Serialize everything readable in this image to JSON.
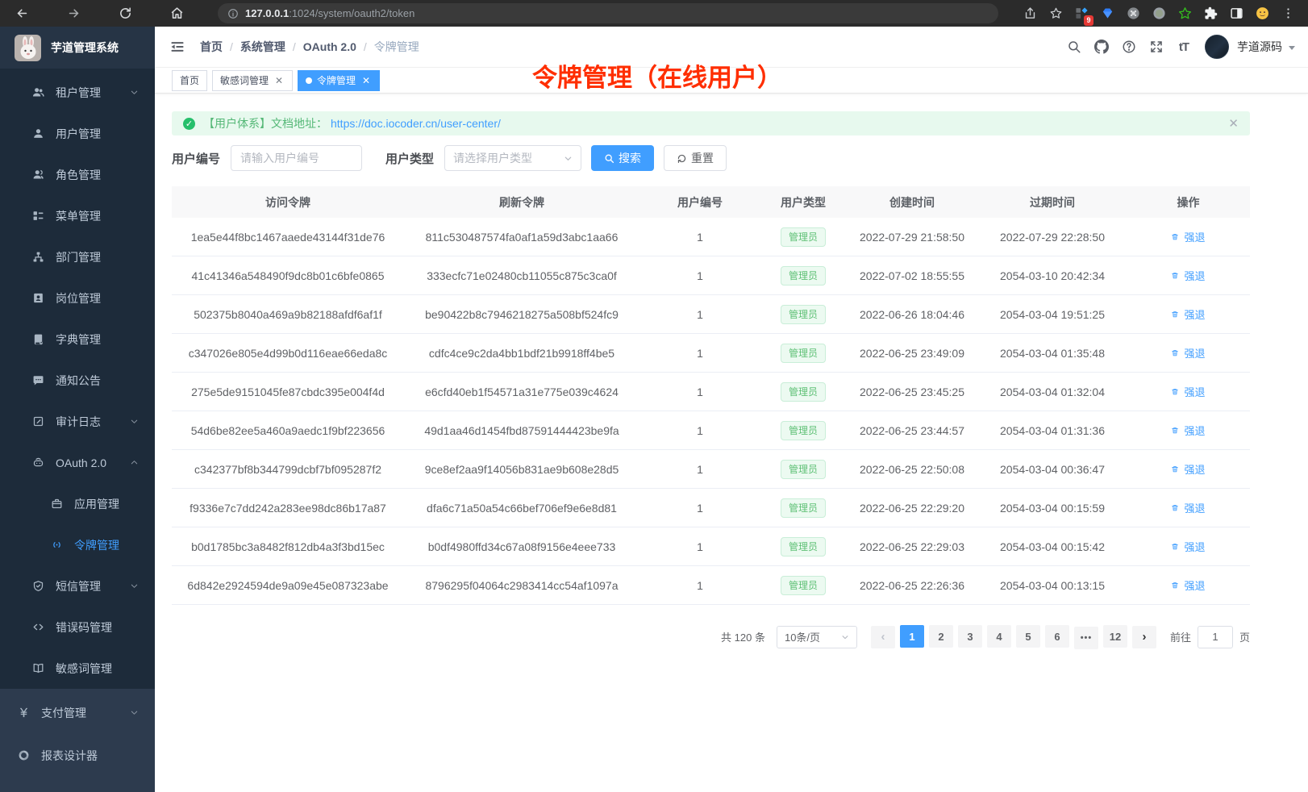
{
  "colors": {
    "accent": "#409eff",
    "success": "#67c23a",
    "annotation_red": "#ff2e00",
    "sidebar_bg": "#1d2b3a",
    "sidebar_top_bg": "#2d3b4e"
  },
  "browser": {
    "url_host": "127.0.0.1",
    "url_path": ":1024/system/oauth2/token",
    "extension_badge": "9"
  },
  "sidebar": {
    "title": "芋道管理系统",
    "items": [
      {
        "key": "tenant",
        "label": "租户管理",
        "icon": "peoples-icon",
        "level": 2,
        "chevron": "down"
      },
      {
        "key": "user",
        "label": "用户管理",
        "icon": "user-icon",
        "level": 2
      },
      {
        "key": "role",
        "label": "角色管理",
        "icon": "role-icon",
        "level": 2
      },
      {
        "key": "menu",
        "label": "菜单管理",
        "icon": "menu-tree-icon",
        "level": 2
      },
      {
        "key": "dept",
        "label": "部门管理",
        "icon": "org-tree-icon",
        "level": 2
      },
      {
        "key": "post",
        "label": "岗位管理",
        "icon": "post-badge-icon",
        "level": 2
      },
      {
        "key": "dict",
        "label": "字典管理",
        "icon": "dictionary-icon",
        "level": 2
      },
      {
        "key": "notice",
        "label": "通知公告",
        "icon": "message-icon",
        "level": 2
      },
      {
        "key": "audit-log",
        "label": "审计日志",
        "icon": "edit-log-icon",
        "level": 2,
        "chevron": "down"
      },
      {
        "key": "oauth2",
        "label": "OAuth 2.0",
        "icon": "robot-icon",
        "level": 2,
        "chevron": "up"
      },
      {
        "key": "oauth2-app",
        "label": "应用管理",
        "icon": "briefcase-icon",
        "level": 3
      },
      {
        "key": "oauth2-token",
        "label": "令牌管理",
        "icon": "broadcast-icon",
        "level": 3,
        "active": true
      },
      {
        "key": "sms",
        "label": "短信管理",
        "icon": "shield-check-icon",
        "level": 2,
        "chevron": "down"
      },
      {
        "key": "error-code",
        "label": "错误码管理",
        "icon": "code-icon",
        "level": 2
      },
      {
        "key": "sensitive-word",
        "label": "敏感词管理",
        "icon": "open-book-icon",
        "level": 2
      },
      {
        "key": "pay",
        "label": "支付管理",
        "icon": "yen-icon",
        "level": 1,
        "chevron": "down",
        "top": true
      },
      {
        "key": "report-designer",
        "label": "报表设计器",
        "icon": "pie-segment-icon",
        "level": 1,
        "top": true
      }
    ]
  },
  "navbar": {
    "breadcrumb": [
      {
        "label": "首页"
      },
      {
        "label": "系统管理"
      },
      {
        "label": "OAuth 2.0"
      },
      {
        "label": "令牌管理",
        "current": true
      }
    ],
    "username": "芋道源码"
  },
  "tabs": [
    {
      "key": "home",
      "label": "首页"
    },
    {
      "key": "sensitive-word",
      "label": "敏感词管理",
      "closable": true
    },
    {
      "key": "oauth2-token",
      "label": "令牌管理",
      "closable": true,
      "active": true
    }
  ],
  "annotation": "令牌管理（在线用户）",
  "alert": {
    "prefix": "【用户体系】文档地址：",
    "link": "https://doc.iocoder.cn/user-center/"
  },
  "filters": {
    "user_id_label": "用户编号",
    "user_id_placeholder": "请输入用户编号",
    "user_type_label": "用户类型",
    "user_type_placeholder": "请选择用户类型",
    "search_label": "搜索",
    "reset_label": "重置"
  },
  "table": {
    "headers": [
      "访问令牌",
      "刷新令牌",
      "用户编号",
      "用户类型",
      "创建时间",
      "过期时间",
      "操作"
    ],
    "action_label": "强退",
    "rows": [
      {
        "access": "1ea5e44f8bc1467aaede43144f31de76",
        "refresh": "811c530487574fa0af1a59d3abc1aa66",
        "user_id": "1",
        "user_type": "管理员",
        "created": "2022-07-29 21:58:50",
        "expires": "2022-07-29 22:28:50"
      },
      {
        "access": "41c41346a548490f9dc8b01c6bfe0865",
        "refresh": "333ecfc71e02480cb11055c875c3ca0f",
        "user_id": "1",
        "user_type": "管理员",
        "created": "2022-07-02 18:55:55",
        "expires": "2054-03-10 20:42:34"
      },
      {
        "access": "502375b8040a469a9b82188afdf6af1f",
        "refresh": "be90422b8c7946218275a508bf524fc9",
        "user_id": "1",
        "user_type": "管理员",
        "created": "2022-06-26 18:04:46",
        "expires": "2054-03-04 19:51:25"
      },
      {
        "access": "c347026e805e4d99b0d116eae66eda8c",
        "refresh": "cdfc4ce9c2da4bb1bdf21b9918ff4be5",
        "user_id": "1",
        "user_type": "管理员",
        "created": "2022-06-25 23:49:09",
        "expires": "2054-03-04 01:35:48"
      },
      {
        "access": "275e5de9151045fe87cbdc395e004f4d",
        "refresh": "e6cfd40eb1f54571a31e775e039c4624",
        "user_id": "1",
        "user_type": "管理员",
        "created": "2022-06-25 23:45:25",
        "expires": "2054-03-04 01:32:04"
      },
      {
        "access": "54d6be82ee5a460a9aedc1f9bf223656",
        "refresh": "49d1aa46d1454fbd87591444423be9fa",
        "user_id": "1",
        "user_type": "管理员",
        "created": "2022-06-25 23:44:57",
        "expires": "2054-03-04 01:31:36"
      },
      {
        "access": "c342377bf8b344799dcbf7bf095287f2",
        "refresh": "9ce8ef2aa9f14056b831ae9b608e28d5",
        "user_id": "1",
        "user_type": "管理员",
        "created": "2022-06-25 22:50:08",
        "expires": "2054-03-04 00:36:47"
      },
      {
        "access": "f9336e7c7dd242a283ee98dc86b17a87",
        "refresh": "dfa6c71a50a54c66bef706ef9e6e8d81",
        "user_id": "1",
        "user_type": "管理员",
        "created": "2022-06-25 22:29:20",
        "expires": "2054-03-04 00:15:59"
      },
      {
        "access": "b0d1785bc3a8482f812db4a3f3bd15ec",
        "refresh": "b0df4980ffd34c67a08f9156e4eee733",
        "user_id": "1",
        "user_type": "管理员",
        "created": "2022-06-25 22:29:03",
        "expires": "2054-03-04 00:15:42"
      },
      {
        "access": "6d842e2924594de9a09e45e087323abe",
        "refresh": "8796295f04064c2983414cc54af1097a",
        "user_id": "1",
        "user_type": "管理员",
        "created": "2022-06-25 22:26:36",
        "expires": "2054-03-04 00:13:15"
      }
    ]
  },
  "pagination": {
    "total": "共 120 条",
    "page_size": "10条/页",
    "pages": [
      "1",
      "2",
      "3",
      "4",
      "5",
      "6",
      "...",
      "12"
    ],
    "active_page": "1",
    "goto_label": "前往",
    "goto_value": "1",
    "page_suffix": "页"
  }
}
